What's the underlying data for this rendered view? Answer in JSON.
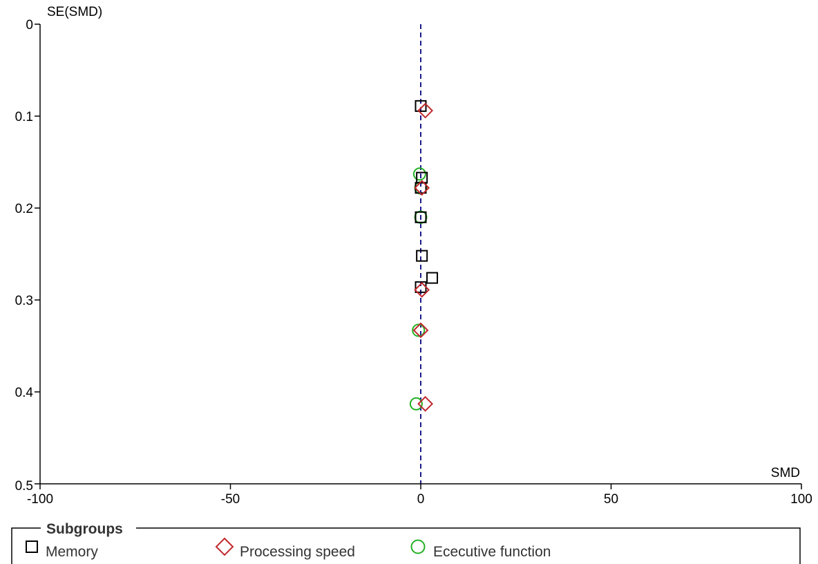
{
  "chart_data": {
    "type": "scatter",
    "subtype": "funnel-plot",
    "xlabel": "SMD",
    "ylabel": "SE(SMD)",
    "xlim": [
      -100,
      100
    ],
    "ylim": [
      0,
      0.5
    ],
    "y_inverted": true,
    "x_ticks": [
      -100,
      -50,
      0,
      50,
      100
    ],
    "x_tick_labels": [
      "-100",
      "-50",
      "0",
      "50",
      "100"
    ],
    "y_ticks": [
      0,
      0.1,
      0.2,
      0.3,
      0.4,
      0.5
    ],
    "y_tick_labels": [
      "0",
      "0.1",
      "0.2",
      "0.3",
      "0.4",
      "0.5"
    ],
    "reference_line": {
      "x": 0,
      "style": "dashed",
      "color": "#1a1a8c"
    },
    "legend": {
      "title": "Subgroups",
      "position": "bottom"
    },
    "series": [
      {
        "name": "Memory",
        "marker": "square",
        "color": "#000000",
        "points": [
          {
            "x": 0.0,
            "y": 0.089
          },
          {
            "x": 0.3,
            "y": 0.167
          },
          {
            "x": 0.0,
            "y": 0.178
          },
          {
            "x": 0.0,
            "y": 0.21
          },
          {
            "x": 0.3,
            "y": 0.252
          },
          {
            "x": 3.0,
            "y": 0.276
          },
          {
            "x": 0.0,
            "y": 0.286
          }
        ]
      },
      {
        "name": "Processing speed",
        "marker": "diamond",
        "color": "#c0282d",
        "points": [
          {
            "x": 1.2,
            "y": 0.094
          },
          {
            "x": 0.3,
            "y": 0.178
          },
          {
            "x": 0.3,
            "y": 0.289
          },
          {
            "x": 0.0,
            "y": 0.333
          },
          {
            "x": 1.2,
            "y": 0.413
          }
        ]
      },
      {
        "name": "Ececutive function",
        "marker": "circle",
        "color": "#22b022",
        "points": [
          {
            "x": -0.3,
            "y": 0.163
          },
          {
            "x": 0.0,
            "y": 0.178
          },
          {
            "x": 0.0,
            "y": 0.21
          },
          {
            "x": -0.6,
            "y": 0.333
          },
          {
            "x": -1.2,
            "y": 0.413
          }
        ]
      }
    ]
  }
}
